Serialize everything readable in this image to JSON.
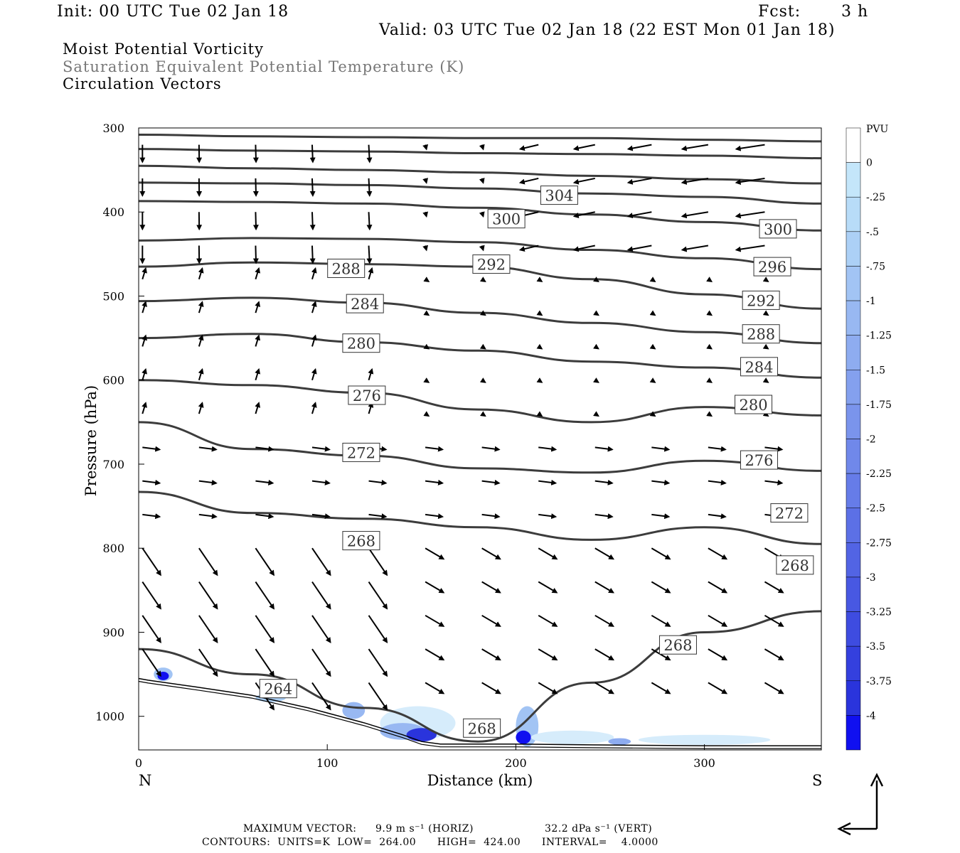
{
  "header": {
    "init": "Init: 00 UTC Tue 02 Jan 18",
    "fcst_label": "Fcst:",
    "fcst_value": "3 h",
    "valid": "Valid: 03 UTC Tue 02 Jan 18 (22 EST Mon 01 Jan 18)"
  },
  "fields": {
    "field1": "Moist Potential Vorticity",
    "field2": "Saturation Equivalent Potential Temperature (K)",
    "field3": "Circulation Vectors"
  },
  "footer": {
    "max_vector_label": "MAXIMUM VECTOR:",
    "max_vector_horiz": "9.9 m s⁻¹ (HORIZ)",
    "max_vector_vert": "32.2 dPa s⁻¹ (VERT)",
    "contours": "CONTOURS:  UNITS=K  LOW=  264.00      HIGH=  424.00      INTERVAL=    4.0000"
  },
  "colors": {
    "contour": "#3c3c3c",
    "vector": "#000000",
    "pv_light": "#d6ecfb",
    "pv_strong": "#1010f0"
  },
  "chart_data": {
    "type": "contour",
    "xlabel": "Distance (km)",
    "ylabel": "Pressure (hPa)",
    "xlim": [
      0,
      362
    ],
    "ylim": [
      1040,
      300
    ],
    "y_scale": "linear-inverted",
    "x_ticks": [
      "0",
      "100",
      "200",
      "300"
    ],
    "y_ticks": [
      "300",
      "400",
      "500",
      "600",
      "700",
      "800",
      "900",
      "1000"
    ],
    "x_end_labels": {
      "left": "N",
      "right": "S"
    },
    "colorbar": {
      "unit": "PVU",
      "labels": [
        "0",
        "-.25",
        "-.5",
        "-.75",
        "-1",
        "-1.25",
        "-1.5",
        "-1.75",
        "-2",
        "-2.25",
        "-2.5",
        "-2.75",
        "-3",
        "-3.25",
        "-3.5",
        "-3.75",
        "-4"
      ],
      "colors": [
        "#ffffff",
        "#c4e6fa",
        "#b8dcf8",
        "#acd0f6",
        "#a2c4f4",
        "#98b8f2",
        "#8eacf0",
        "#84a0ee",
        "#7a94ec",
        "#7088ea",
        "#667ce8",
        "#5c70e6",
        "#5264e4",
        "#4858e2",
        "#3e4ce0",
        "#3440de",
        "#2a34dc",
        "#1010f0"
      ]
    },
    "contour_labels": [
      {
        "text": "304",
        "x": 223,
        "p": 380
      },
      {
        "text": "300",
        "x": 195,
        "p": 408
      },
      {
        "text": "300",
        "x": 339,
        "p": 420
      },
      {
        "text": "296",
        "x": 336,
        "p": 465
      },
      {
        "text": "292",
        "x": 187,
        "p": 462
      },
      {
        "text": "292",
        "x": 330,
        "p": 505
      },
      {
        "text": "288",
        "x": 110,
        "p": 467
      },
      {
        "text": "288",
        "x": 330,
        "p": 545
      },
      {
        "text": "284",
        "x": 120,
        "p": 509
      },
      {
        "text": "284",
        "x": 329,
        "p": 584
      },
      {
        "text": "280",
        "x": 118,
        "p": 556
      },
      {
        "text": "280",
        "x": 326,
        "p": 629
      },
      {
        "text": "276",
        "x": 121,
        "p": 618
      },
      {
        "text": "276",
        "x": 329,
        "p": 695
      },
      {
        "text": "272",
        "x": 118,
        "p": 686
      },
      {
        "text": "272",
        "x": 345,
        "p": 758
      },
      {
        "text": "268",
        "x": 118,
        "p": 791
      },
      {
        "text": "268",
        "x": 348,
        "p": 820
      },
      {
        "text": "268",
        "x": 286,
        "p": 915
      },
      {
        "text": "268",
        "x": 182,
        "p": 1014
      },
      {
        "text": "264",
        "x": 74,
        "p": 967
      }
    ],
    "contours": [
      {
        "theta": 308,
        "x": [
          0,
          60,
          120,
          180,
          240,
          300,
          362
        ],
        "p": [
          308,
          310,
          311,
          312,
          312,
          314,
          316
        ]
      },
      {
        "theta": 306,
        "x": [
          0,
          60,
          120,
          180,
          240,
          300,
          362
        ],
        "p": [
          325,
          327,
          328,
          330,
          331,
          333,
          336
        ]
      },
      {
        "theta": 304,
        "x": [
          0,
          60,
          120,
          180,
          240,
          300,
          362
        ],
        "p": [
          345,
          348,
          350,
          353,
          357,
          361,
          366
        ]
      },
      {
        "theta": 302,
        "x": [
          0,
          60,
          120,
          180,
          240,
          300,
          362
        ],
        "p": [
          365,
          366,
          368,
          372,
          378,
          382,
          390
        ]
      },
      {
        "theta": 300,
        "x": [
          0,
          60,
          120,
          180,
          240,
          300,
          362
        ],
        "p": [
          387,
          388,
          390,
          395,
          403,
          412,
          422
        ]
      },
      {
        "theta": 296,
        "x": [
          0,
          60,
          120,
          180,
          240,
          300,
          362
        ],
        "p": [
          434,
          431,
          432,
          436,
          445,
          455,
          468
        ]
      },
      {
        "theta": 292,
        "x": [
          0,
          60,
          120,
          180,
          240,
          300,
          362
        ],
        "p": [
          465,
          460,
          462,
          465,
          480,
          498,
          515
        ]
      },
      {
        "theta": 288,
        "x": [
          0,
          60,
          120,
          180,
          240,
          300,
          362
        ],
        "p": [
          506,
          502,
          508,
          520,
          532,
          543,
          556
        ]
      },
      {
        "theta": 284,
        "x": [
          0,
          60,
          120,
          180,
          240,
          300,
          362
        ],
        "p": [
          550,
          545,
          555,
          565,
          578,
          585,
          597
        ]
      },
      {
        "theta": 280,
        "x": [
          0,
          60,
          120,
          180,
          240,
          300,
          362
        ],
        "p": [
          600,
          606,
          615,
          635,
          650,
          632,
          642
        ]
      },
      {
        "theta": 276,
        "x": [
          0,
          60,
          120,
          180,
          240,
          300,
          362
        ],
        "p": [
          650,
          682,
          690,
          705,
          710,
          696,
          708
        ]
      },
      {
        "theta": 272,
        "x": [
          0,
          60,
          120,
          180,
          240,
          300,
          362
        ],
        "p": [
          733,
          758,
          765,
          775,
          790,
          775,
          795
        ]
      },
      {
        "theta": 268,
        "x": [
          0,
          60,
          120,
          180,
          240,
          300,
          362
        ],
        "p": [
          920,
          950,
          990,
          1030,
          960,
          900,
          875
        ]
      }
    ]
  }
}
